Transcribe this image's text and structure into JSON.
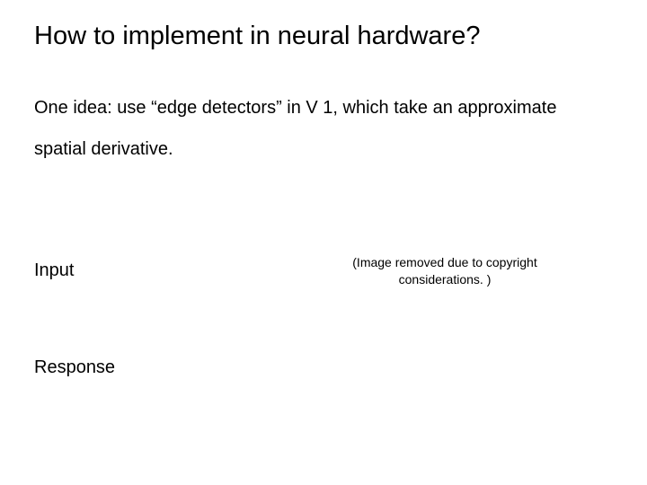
{
  "title": "How to implement in neural hardware?",
  "description": "One idea: use “edge detectors” in V 1, which take an approximate spatial derivative.",
  "labels": {
    "input": "Input",
    "response": "Response"
  },
  "copyright_note": "(Image removed due to copyright considerations. )",
  "style": {
    "background_color": "#ffffff",
    "text_color": "#000000",
    "title_fontsize": 29,
    "body_fontsize": 20,
    "note_fontsize": 14,
    "font_family": "Arial, Helvetica, sans-serif"
  }
}
